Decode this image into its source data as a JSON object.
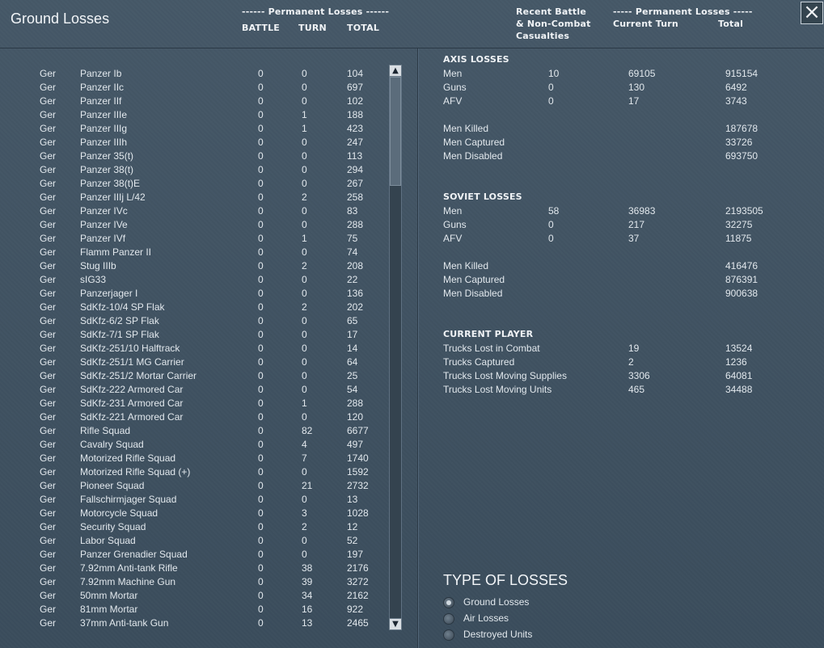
{
  "title": "Ground Losses",
  "close_icon": "close-icon",
  "header": {
    "permanent_losses_left": "------ Permanent Losses ------",
    "col_battle": "BATTLE",
    "col_turn": "TURN",
    "col_total": "TOTAL",
    "recent_battle_1": "Recent Battle",
    "recent_battle_2": "& Non-Combat",
    "recent_battle_3": "Casualties",
    "permanent_losses_right": "----- Permanent Losses -----",
    "current_turn": "Current Turn",
    "total": "Total"
  },
  "units": [
    {
      "nat": "Ger",
      "name": "Panzer Ib",
      "battle": "0",
      "turn": "0",
      "total": "104"
    },
    {
      "nat": "Ger",
      "name": "Panzer IIc",
      "battle": "0",
      "turn": "0",
      "total": "697"
    },
    {
      "nat": "Ger",
      "name": "Panzer IIf",
      "battle": "0",
      "turn": "0",
      "total": "102"
    },
    {
      "nat": "Ger",
      "name": "Panzer IIIe",
      "battle": "0",
      "turn": "1",
      "total": "188"
    },
    {
      "nat": "Ger",
      "name": "Panzer IIIg",
      "battle": "0",
      "turn": "1",
      "total": "423"
    },
    {
      "nat": "Ger",
      "name": "Panzer IIIh",
      "battle": "0",
      "turn": "0",
      "total": "247"
    },
    {
      "nat": "Ger",
      "name": "Panzer 35(t)",
      "battle": "0",
      "turn": "0",
      "total": "113"
    },
    {
      "nat": "Ger",
      "name": "Panzer 38(t)",
      "battle": "0",
      "turn": "0",
      "total": "294"
    },
    {
      "nat": "Ger",
      "name": "Panzer 38(t)E",
      "battle": "0",
      "turn": "0",
      "total": "267"
    },
    {
      "nat": "Ger",
      "name": "Panzer IIIj L/42",
      "battle": "0",
      "turn": "2",
      "total": "258"
    },
    {
      "nat": "Ger",
      "name": "Panzer IVc",
      "battle": "0",
      "turn": "0",
      "total": "83"
    },
    {
      "nat": "Ger",
      "name": "Panzer IVe",
      "battle": "0",
      "turn": "0",
      "total": "288"
    },
    {
      "nat": "Ger",
      "name": "Panzer IVf",
      "battle": "0",
      "turn": "1",
      "total": "75"
    },
    {
      "nat": "Ger",
      "name": "Flamm Panzer II",
      "battle": "0",
      "turn": "0",
      "total": "74"
    },
    {
      "nat": "Ger",
      "name": "Stug IIIb",
      "battle": "0",
      "turn": "2",
      "total": "208"
    },
    {
      "nat": "Ger",
      "name": "sIG33",
      "battle": "0",
      "turn": "0",
      "total": "22"
    },
    {
      "nat": "Ger",
      "name": "Panzerjager I",
      "battle": "0",
      "turn": "0",
      "total": "136"
    },
    {
      "nat": "Ger",
      "name": "SdKfz-10/4 SP Flak",
      "battle": "0",
      "turn": "2",
      "total": "202"
    },
    {
      "nat": "Ger",
      "name": "SdKfz-6/2 SP Flak",
      "battle": "0",
      "turn": "0",
      "total": "65"
    },
    {
      "nat": "Ger",
      "name": "SdKfz-7/1 SP Flak",
      "battle": "0",
      "turn": "0",
      "total": "17"
    },
    {
      "nat": "Ger",
      "name": "SdKfz-251/10 Halftrack",
      "battle": "0",
      "turn": "0",
      "total": "14"
    },
    {
      "nat": "Ger",
      "name": "SdKfz-251/1 MG Carrier",
      "battle": "0",
      "turn": "0",
      "total": "64"
    },
    {
      "nat": "Ger",
      "name": "SdKfz-251/2 Mortar Carrier",
      "battle": "0",
      "turn": "0",
      "total": "25"
    },
    {
      "nat": "Ger",
      "name": "SdKfz-222 Armored Car",
      "battle": "0",
      "turn": "0",
      "total": "54"
    },
    {
      "nat": "Ger",
      "name": "SdKfz-231 Armored Car",
      "battle": "0",
      "turn": "1",
      "total": "288"
    },
    {
      "nat": "Ger",
      "name": "SdKfz-221 Armored Car",
      "battle": "0",
      "turn": "0",
      "total": "120"
    },
    {
      "nat": "Ger",
      "name": "Rifle Squad",
      "battle": "0",
      "turn": "82",
      "total": "6677"
    },
    {
      "nat": "Ger",
      "name": "Cavalry Squad",
      "battle": "0",
      "turn": "4",
      "total": "497"
    },
    {
      "nat": "Ger",
      "name": "Motorized Rifle Squad",
      "battle": "0",
      "turn": "7",
      "total": "1740"
    },
    {
      "nat": "Ger",
      "name": "Motorized Rifle Squad (+)",
      "battle": "0",
      "turn": "0",
      "total": "1592"
    },
    {
      "nat": "Ger",
      "name": "Pioneer Squad",
      "battle": "0",
      "turn": "21",
      "total": "2732"
    },
    {
      "nat": "Ger",
      "name": "Fallschirmjager Squad",
      "battle": "0",
      "turn": "0",
      "total": "13"
    },
    {
      "nat": "Ger",
      "name": "Motorcycle Squad",
      "battle": "0",
      "turn": "3",
      "total": "1028"
    },
    {
      "nat": "Ger",
      "name": "Security Squad",
      "battle": "0",
      "turn": "2",
      "total": "12"
    },
    {
      "nat": "Ger",
      "name": "Labor Squad",
      "battle": "0",
      "turn": "0",
      "total": "52"
    },
    {
      "nat": "Ger",
      "name": "Panzer Grenadier Squad",
      "battle": "0",
      "turn": "0",
      "total": "197"
    },
    {
      "nat": "Ger",
      "name": "7.92mm Anti-tank Rifle",
      "battle": "0",
      "turn": "38",
      "total": "2176"
    },
    {
      "nat": "Ger",
      "name": "7.92mm Machine Gun",
      "battle": "0",
      "turn": "39",
      "total": "3272"
    },
    {
      "nat": "Ger",
      "name": "50mm Mortar",
      "battle": "0",
      "turn": "34",
      "total": "2162"
    },
    {
      "nat": "Ger",
      "name": "81mm Mortar",
      "battle": "0",
      "turn": "16",
      "total": "922"
    },
    {
      "nat": "Ger",
      "name": "37mm Anti-tank Gun",
      "battle": "0",
      "turn": "13",
      "total": "2465"
    }
  ],
  "scroll": {
    "up_icon": "scroll-up-icon",
    "down_icon": "scroll-down-icon",
    "up_glyph": "▲",
    "down_glyph": "▼"
  },
  "axis": {
    "title": "AXIS LOSSES",
    "rows": [
      {
        "label": "Men",
        "battle": "10",
        "turn": "69105",
        "total": "915154"
      },
      {
        "label": "Guns",
        "battle": "0",
        "turn": "130",
        "total": "6492"
      },
      {
        "label": "AFV",
        "battle": "0",
        "turn": "17",
        "total": "3743"
      }
    ],
    "detail": [
      {
        "label": "Men Killed",
        "total": "187678"
      },
      {
        "label": "Men Captured",
        "total": "33726"
      },
      {
        "label": "Men Disabled",
        "total": "693750"
      }
    ]
  },
  "soviet": {
    "title": "SOVIET LOSSES",
    "rows": [
      {
        "label": "Men",
        "battle": "58",
        "turn": "36983",
        "total": "2193505"
      },
      {
        "label": "Guns",
        "battle": "0",
        "turn": "217",
        "total": "32275"
      },
      {
        "label": "AFV",
        "battle": "0",
        "turn": "37",
        "total": "11875"
      }
    ],
    "detail": [
      {
        "label": "Men Killed",
        "total": "416476"
      },
      {
        "label": "Men Captured",
        "total": "876391"
      },
      {
        "label": "Men Disabled",
        "total": "900638"
      }
    ]
  },
  "player": {
    "title": "CURRENT PLAYER",
    "rows": [
      {
        "label": "Trucks Lost in Combat",
        "turn": "19",
        "total": "13524"
      },
      {
        "label": "Trucks Captured",
        "turn": "2",
        "total": "1236"
      },
      {
        "label": "Trucks Lost Moving Supplies",
        "turn": "3306",
        "total": "64081"
      },
      {
        "label": "Trucks Lost Moving Units",
        "turn": "465",
        "total": "34488"
      }
    ]
  },
  "type_of_losses": {
    "title": "TYPE OF LOSSES",
    "options": [
      {
        "label": "Ground Losses",
        "selected": true
      },
      {
        "label": "Air Losses",
        "selected": false
      },
      {
        "label": "Destroyed Units",
        "selected": false
      }
    ]
  }
}
